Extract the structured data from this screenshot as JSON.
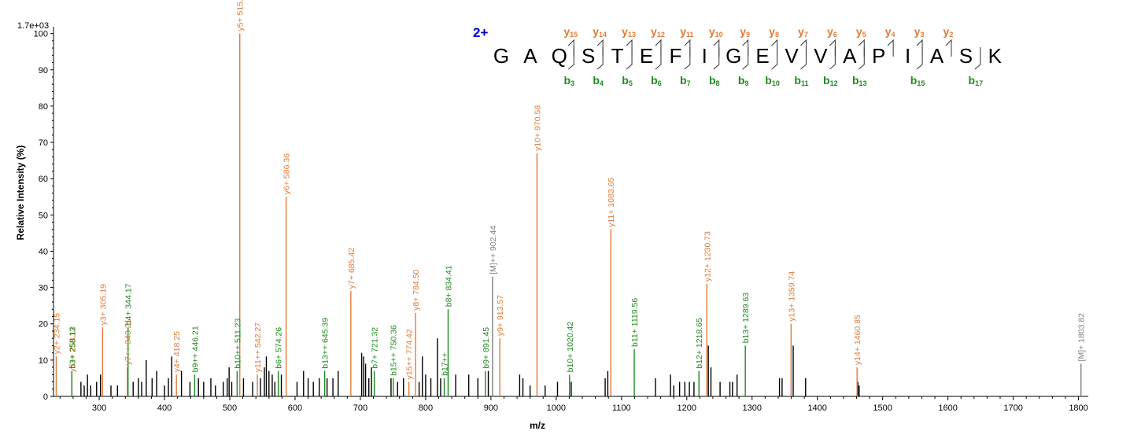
{
  "colors": {
    "y_ion": "#E07B39",
    "b_ion": "#1E8A1E",
    "precursor": "#808080",
    "unassigned": "#000000",
    "charge": "#0000CC"
  },
  "chart_data": {
    "type": "bar",
    "ylabel": "Relative   Intensity (%)",
    "xlabel": "m/z",
    "scale_label": "1.7e+03",
    "xlim": [
      230,
      1815
    ],
    "ylim": [
      0,
      101
    ],
    "x_ticks": [
      "300",
      "400",
      "500",
      "600",
      "700",
      "800",
      "900",
      "1000",
      "1100",
      "1200",
      "1300",
      "1400",
      "1500",
      "1600",
      "1700",
      "1800"
    ],
    "y_ticks": [
      "0",
      "10",
      "20",
      "30",
      "40",
      "50",
      "60",
      "70",
      "80",
      "90",
      "100"
    ],
    "labeled_peaks": [
      {
        "mz": 234.15,
        "intensity": 11,
        "label": "y2+ 234.15",
        "ion": "y"
      },
      {
        "mz": 258.12,
        "intensity": 6,
        "label": "y5++ 258.12",
        "ion": "y"
      },
      {
        "mz": 258.13,
        "intensity": 7,
        "label": "b3+ 258.13",
        "ion": "b"
      },
      {
        "mz": 305.19,
        "intensity": 19,
        "label": "y3+ 305.19",
        "ion": "y"
      },
      {
        "mz": 343.21,
        "intensity": 8,
        "label": "y7++ 343.21",
        "ion": "y"
      },
      {
        "mz": 344.17,
        "intensity": 19,
        "label": "b4+ 344.17",
        "ion": "b"
      },
      {
        "mz": 418.25,
        "intensity": 6,
        "label": "y4+ 418.25",
        "ion": "y"
      },
      {
        "mz": 446.21,
        "intensity": 6,
        "label": "b9++ 446.21",
        "ion": "b"
      },
      {
        "mz": 511.23,
        "intensity": 7,
        "label": "b10++ 511.23",
        "ion": "b"
      },
      {
        "mz": 515.33,
        "intensity": 100,
        "label": "y5+ 515.33",
        "ion": "y"
      },
      {
        "mz": 542.27,
        "intensity": 6,
        "label": "y11++ 542.27",
        "ion": "y"
      },
      {
        "mz": 574.26,
        "intensity": 7,
        "label": "b6+ 574.26",
        "ion": "b"
      },
      {
        "mz": 586.36,
        "intensity": 55,
        "label": "y6+ 586.36",
        "ion": "y"
      },
      {
        "mz": 645.39,
        "intensity": 7,
        "label": "b13++ 645.39",
        "ion": "b"
      },
      {
        "mz": 685.42,
        "intensity": 29,
        "label": "y7+ 685.42",
        "ion": "y"
      },
      {
        "mz": 721.32,
        "intensity": 7,
        "label": "b7+ 721.32",
        "ion": "b"
      },
      {
        "mz": 750.36,
        "intensity": 5,
        "label": "b15++ 750.36",
        "ion": "b"
      },
      {
        "mz": 774.42,
        "intensity": 4,
        "label": "y15++ 774.42",
        "ion": "y"
      },
      {
        "mz": 784.5,
        "intensity": 23,
        "label": "y8+ 784.50",
        "ion": "y"
      },
      {
        "mz": 828.5,
        "intensity": 5,
        "label": "b17++",
        "ion": "b"
      },
      {
        "mz": 834.41,
        "intensity": 24,
        "label": "b8+ 834.41",
        "ion": "b"
      },
      {
        "mz": 891.45,
        "intensity": 7,
        "label": "b9+ 891.45",
        "ion": "b"
      },
      {
        "mz": 902.44,
        "intensity": 33,
        "label": "[M]++ 902.44",
        "ion": "M"
      },
      {
        "mz": 913.57,
        "intensity": 16,
        "label": "y9+ 913.57",
        "ion": "y"
      },
      {
        "mz": 970.58,
        "intensity": 67,
        "label": "y10+ 970.58",
        "ion": "y"
      },
      {
        "mz": 1020.42,
        "intensity": 6,
        "label": "b10+ 1020.42",
        "ion": "b"
      },
      {
        "mz": 1083.65,
        "intensity": 46,
        "label": "y11+ 1083.65",
        "ion": "y"
      },
      {
        "mz": 1119.56,
        "intensity": 13,
        "label": "b11+ 1119.56",
        "ion": "b"
      },
      {
        "mz": 1218.65,
        "intensity": 7,
        "label": "b12+ 1218.65",
        "ion": "b"
      },
      {
        "mz": 1230.73,
        "intensity": 31,
        "label": "y12+ 1230.73",
        "ion": "y"
      },
      {
        "mz": 1289.63,
        "intensity": 14,
        "label": "b13+ 1289.63",
        "ion": "b"
      },
      {
        "mz": 1359.74,
        "intensity": 20,
        "label": "y13+ 1359.74",
        "ion": "y"
      },
      {
        "mz": 1460.85,
        "intensity": 8,
        "label": "y14+ 1460.85",
        "ion": "y"
      },
      {
        "mz": 1803.82,
        "intensity": 9,
        "label": "[M]+ 1803.82",
        "ion": "M"
      }
    ],
    "unlabeled_peaks": [
      {
        "mz": 272,
        "intensity": 4
      },
      {
        "mz": 277,
        "intensity": 3
      },
      {
        "mz": 282,
        "intensity": 6
      },
      {
        "mz": 287,
        "intensity": 3
      },
      {
        "mz": 296,
        "intensity": 4
      },
      {
        "mz": 302,
        "intensity": 6
      },
      {
        "mz": 318,
        "intensity": 3
      },
      {
        "mz": 328,
        "intensity": 3
      },
      {
        "mz": 352,
        "intensity": 4
      },
      {
        "mz": 360,
        "intensity": 5
      },
      {
        "mz": 365,
        "intensity": 4
      },
      {
        "mz": 372,
        "intensity": 10
      },
      {
        "mz": 381,
        "intensity": 5
      },
      {
        "mz": 388,
        "intensity": 7
      },
      {
        "mz": 400,
        "intensity": 3
      },
      {
        "mz": 406,
        "intensity": 5
      },
      {
        "mz": 411,
        "intensity": 11
      },
      {
        "mz": 426,
        "intensity": 7
      },
      {
        "mz": 439,
        "intensity": 4
      },
      {
        "mz": 452,
        "intensity": 5
      },
      {
        "mz": 460,
        "intensity": 4
      },
      {
        "mz": 471,
        "intensity": 5
      },
      {
        "mz": 478,
        "intensity": 3
      },
      {
        "mz": 490,
        "intensity": 4
      },
      {
        "mz": 496,
        "intensity": 5
      },
      {
        "mz": 499,
        "intensity": 8
      },
      {
        "mz": 503,
        "intensity": 4
      },
      {
        "mz": 521,
        "intensity": 5
      },
      {
        "mz": 535,
        "intensity": 4
      },
      {
        "mz": 547,
        "intensity": 5
      },
      {
        "mz": 553,
        "intensity": 8
      },
      {
        "mz": 556,
        "intensity": 11
      },
      {
        "mz": 560,
        "intensity": 7
      },
      {
        "mz": 565,
        "intensity": 6
      },
      {
        "mz": 569,
        "intensity": 4
      },
      {
        "mz": 579,
        "intensity": 6
      },
      {
        "mz": 603,
        "intensity": 4
      },
      {
        "mz": 613,
        "intensity": 7
      },
      {
        "mz": 620,
        "intensity": 5
      },
      {
        "mz": 628,
        "intensity": 4
      },
      {
        "mz": 637,
        "intensity": 5
      },
      {
        "mz": 649,
        "intensity": 5
      },
      {
        "mz": 658,
        "intensity": 5
      },
      {
        "mz": 666,
        "intensity": 7
      },
      {
        "mz": 702,
        "intensity": 12
      },
      {
        "mz": 705,
        "intensity": 11
      },
      {
        "mz": 708,
        "intensity": 9
      },
      {
        "mz": 713,
        "intensity": 5
      },
      {
        "mz": 717,
        "intensity": 8
      },
      {
        "mz": 747,
        "intensity": 5
      },
      {
        "mz": 757,
        "intensity": 4
      },
      {
        "mz": 766,
        "intensity": 5
      },
      {
        "mz": 790,
        "intensity": 4
      },
      {
        "mz": 795,
        "intensity": 11
      },
      {
        "mz": 800,
        "intensity": 6
      },
      {
        "mz": 808,
        "intensity": 5
      },
      {
        "mz": 818,
        "intensity": 16
      },
      {
        "mz": 823,
        "intensity": 5
      },
      {
        "mz": 846,
        "intensity": 6
      },
      {
        "mz": 866,
        "intensity": 6
      },
      {
        "mz": 880,
        "intensity": 5
      },
      {
        "mz": 896,
        "intensity": 7
      },
      {
        "mz": 944,
        "intensity": 6
      },
      {
        "mz": 949,
        "intensity": 5
      },
      {
        "mz": 960,
        "intensity": 3
      },
      {
        "mz": 983,
        "intensity": 3
      },
      {
        "mz": 1002,
        "intensity": 4
      },
      {
        "mz": 1023,
        "intensity": 4
      },
      {
        "mz": 1075,
        "intensity": 5
      },
      {
        "mz": 1079,
        "intensity": 7
      },
      {
        "mz": 1152,
        "intensity": 5
      },
      {
        "mz": 1175,
        "intensity": 6
      },
      {
        "mz": 1180,
        "intensity": 3
      },
      {
        "mz": 1189,
        "intensity": 4
      },
      {
        "mz": 1197,
        "intensity": 4
      },
      {
        "mz": 1204,
        "intensity": 4
      },
      {
        "mz": 1211,
        "intensity": 4
      },
      {
        "mz": 1233,
        "intensity": 14
      },
      {
        "mz": 1237,
        "intensity": 8
      },
      {
        "mz": 1251,
        "intensity": 4
      },
      {
        "mz": 1266,
        "intensity": 4
      },
      {
        "mz": 1270,
        "intensity": 4
      },
      {
        "mz": 1277,
        "intensity": 6
      },
      {
        "mz": 1342,
        "intensity": 5
      },
      {
        "mz": 1346,
        "intensity": 5
      },
      {
        "mz": 1363,
        "intensity": 14
      },
      {
        "mz": 1382,
        "intensity": 5
      },
      {
        "mz": 1462,
        "intensity": 4
      },
      {
        "mz": 1464,
        "intensity": 3
      }
    ]
  },
  "sequence": {
    "charge_label": "2+",
    "residues": [
      "G",
      "A",
      "Q",
      "S",
      "T",
      "E",
      "F",
      "I",
      "G",
      "E",
      "V",
      "V",
      "A",
      "P",
      "I",
      "A",
      "S",
      "K"
    ],
    "y_ions": [
      {
        "after": 3,
        "letter": "y",
        "num": "15"
      },
      {
        "after": 4,
        "letter": "y",
        "num": "14"
      },
      {
        "after": 5,
        "letter": "y",
        "num": "13"
      },
      {
        "after": 6,
        "letter": "y",
        "num": "12"
      },
      {
        "after": 7,
        "letter": "y",
        "num": "11"
      },
      {
        "after": 8,
        "letter": "y",
        "num": "10"
      },
      {
        "after": 9,
        "letter": "y",
        "num": "9"
      },
      {
        "after": 10,
        "letter": "y",
        "num": "8"
      },
      {
        "after": 11,
        "letter": "y",
        "num": "7"
      },
      {
        "after": 12,
        "letter": "y",
        "num": "6"
      },
      {
        "after": 13,
        "letter": "y",
        "num": "5"
      },
      {
        "after": 14,
        "letter": "y",
        "num": "4"
      },
      {
        "after": 15,
        "letter": "y",
        "num": "3"
      },
      {
        "after": 16,
        "letter": "y",
        "num": "2"
      }
    ],
    "b_ions": [
      {
        "after": 3,
        "letter": "b",
        "num": "3"
      },
      {
        "after": 4,
        "letter": "b",
        "num": "4"
      },
      {
        "after": 5,
        "letter": "b",
        "num": "5"
      },
      {
        "after": 6,
        "letter": "b",
        "num": "6"
      },
      {
        "after": 7,
        "letter": "b",
        "num": "7"
      },
      {
        "after": 8,
        "letter": "b",
        "num": "8"
      },
      {
        "after": 9,
        "letter": "b",
        "num": "9"
      },
      {
        "after": 10,
        "letter": "b",
        "num": "10"
      },
      {
        "after": 11,
        "letter": "b",
        "num": "11"
      },
      {
        "after": 12,
        "letter": "b",
        "num": "12"
      },
      {
        "after": 13,
        "letter": "b",
        "num": "13"
      },
      {
        "after": 15,
        "letter": "b",
        "num": "15"
      },
      {
        "after": 17,
        "letter": "b",
        "num": "17"
      }
    ]
  }
}
